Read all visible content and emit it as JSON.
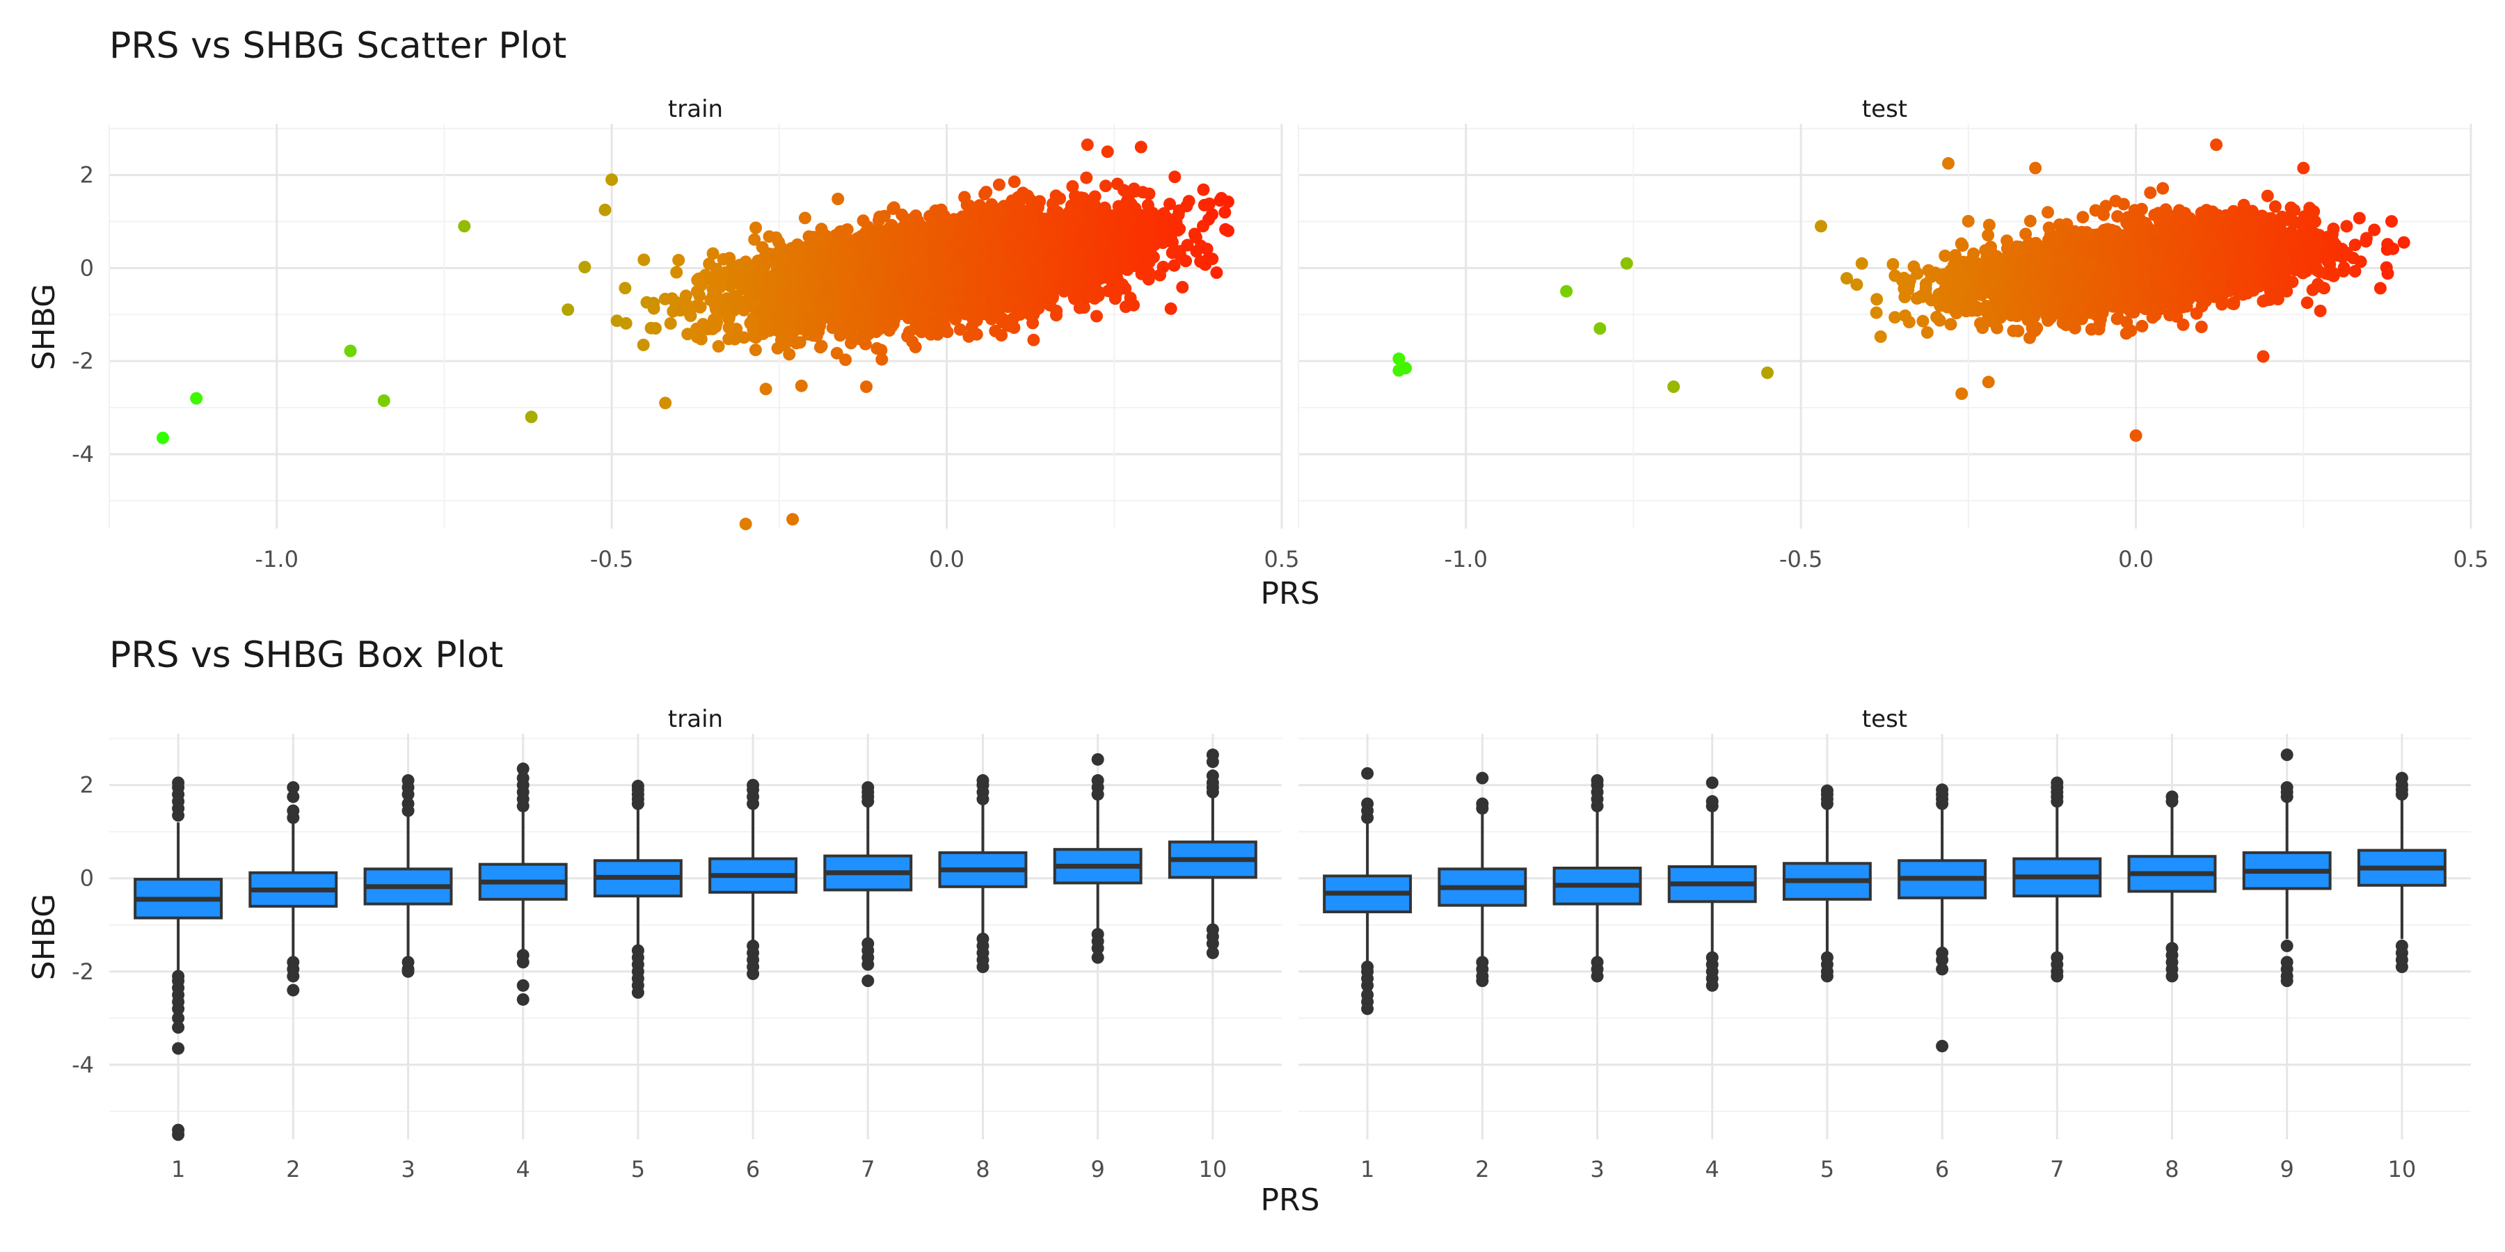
{
  "figure": {
    "scatter_title": "PRS vs SHBG Scatter Plot",
    "box_title": "PRS vs SHBG Box Plot"
  },
  "chart_data": [
    {
      "type": "scatter",
      "title": "PRS vs SHBG Scatter Plot",
      "xlabel": "PRS",
      "ylabel": "SHBG",
      "facets": [
        "train",
        "test"
      ],
      "xlim": [
        -1.25,
        0.5
      ],
      "ylim": [
        -5.6,
        3.1
      ],
      "xticks": [
        -1.0,
        -0.5,
        0.0,
        0.5
      ],
      "xtick_labels": [
        "-1.0",
        "-0.5",
        "0.0",
        "0.5"
      ],
      "yticks": [
        -4,
        -2,
        0,
        2
      ],
      "ytick_labels": [
        "-4",
        "-2",
        "0",
        "2"
      ],
      "grid": true,
      "legend": "none",
      "color_scale": {
        "low": "#33ff00",
        "mid": "#dd8800",
        "high": "#ff2200",
        "encodes": "PRS"
      },
      "series": [
        {
          "facet": "train",
          "bulk_density": {
            "n": 5500,
            "x_mean": 0.0,
            "x_sd": 0.14,
            "slope": 2.0,
            "noise_sd": 0.5,
            "x_min": -0.83,
            "x_max": 0.42
          },
          "points": [
            {
              "x": -1.17,
              "y": -3.65
            },
            {
              "x": -1.12,
              "y": -2.8
            },
            {
              "x": -0.89,
              "y": -1.78
            },
            {
              "x": -0.84,
              "y": -2.85
            },
            {
              "x": -0.62,
              "y": -3.2
            },
            {
              "x": -0.3,
              "y": -5.5
            },
            {
              "x": -0.23,
              "y": -5.4
            },
            {
              "x": -0.42,
              "y": -2.9
            },
            {
              "x": -0.5,
              "y": 1.9
            },
            {
              "x": -0.51,
              "y": 1.25
            },
            {
              "x": -0.72,
              "y": 0.9
            },
            {
              "x": 0.29,
              "y": 2.6
            },
            {
              "x": 0.21,
              "y": 2.65
            },
            {
              "x": 0.41,
              "y": 1.5
            },
            {
              "x": 0.42,
              "y": 0.8
            },
            {
              "x": 0.24,
              "y": 2.5
            },
            {
              "x": -0.27,
              "y": -2.6
            },
            {
              "x": -0.12,
              "y": -2.55
            }
          ]
        },
        {
          "facet": "test",
          "bulk_density": {
            "n": 3200,
            "x_mean": 0.0,
            "x_sd": 0.13,
            "slope": 1.5,
            "noise_sd": 0.45,
            "x_min": -0.68,
            "x_max": 0.4
          },
          "points": [
            {
              "x": -1.1,
              "y": -1.95
            },
            {
              "x": -1.1,
              "y": -2.2
            },
            {
              "x": -1.09,
              "y": -2.15
            },
            {
              "x": -0.85,
              "y": -0.5
            },
            {
              "x": -0.8,
              "y": -1.3
            },
            {
              "x": -0.76,
              "y": 0.1
            },
            {
              "x": -0.69,
              "y": -2.55
            },
            {
              "x": -0.47,
              "y": 0.9
            },
            {
              "x": -0.55,
              "y": -2.25
            },
            {
              "x": -0.28,
              "y": 2.25
            },
            {
              "x": -0.15,
              "y": 2.15
            },
            {
              "x": 0.12,
              "y": 2.65
            },
            {
              "x": 0.25,
              "y": 2.15
            },
            {
              "x": 0.4,
              "y": 0.55
            },
            {
              "x": 0.0,
              "y": -3.6
            },
            {
              "x": -0.26,
              "y": -2.7
            },
            {
              "x": -0.22,
              "y": -2.45
            },
            {
              "x": 0.19,
              "y": -1.9
            }
          ]
        }
      ]
    },
    {
      "type": "box",
      "title": "PRS vs SHBG Box Plot",
      "xlabel": "PRS",
      "ylabel": "SHBG",
      "facets": [
        "train",
        "test"
      ],
      "categories": [
        "1",
        "2",
        "3",
        "4",
        "5",
        "6",
        "7",
        "8",
        "9",
        "10"
      ],
      "ylim": [
        -5.6,
        3.1
      ],
      "yticks": [
        -4,
        -2,
        0,
        2
      ],
      "ytick_labels": [
        "-4",
        "-2",
        "0",
        "2"
      ],
      "grid": true,
      "legend": "none",
      "box_color": "#1e90ff",
      "series": [
        {
          "facet": "train",
          "boxes": [
            {
              "q1": -0.85,
              "median": -0.45,
              "q3": -0.02,
              "whisker_low": -2.0,
              "whisker_high": 1.2,
              "outliers": [
                -2.1,
                -2.2,
                -2.35,
                -2.5,
                -2.65,
                -2.8,
                -3.0,
                -3.2,
                -3.65,
                -5.4,
                -5.5,
                1.35,
                1.5,
                1.65,
                1.8,
                1.95,
                2.05
              ]
            },
            {
              "q1": -0.6,
              "median": -0.25,
              "q3": 0.12,
              "whisker_low": -1.75,
              "whisker_high": 1.2,
              "outliers": [
                -1.8,
                -1.95,
                -2.1,
                -2.4,
                1.3,
                1.45,
                1.75,
                1.95
              ]
            },
            {
              "q1": -0.55,
              "median": -0.18,
              "q3": 0.2,
              "whisker_low": -1.7,
              "whisker_high": 1.35,
              "outliers": [
                -1.8,
                -1.95,
                -2.0,
                1.45,
                1.6,
                1.8,
                1.95,
                2.1
              ]
            },
            {
              "q1": -0.45,
              "median": -0.08,
              "q3": 0.3,
              "whisker_low": -1.55,
              "whisker_high": 1.45,
              "outliers": [
                -1.65,
                -1.8,
                -2.3,
                -2.6,
                1.55,
                1.7,
                1.85,
                2.0,
                2.15,
                2.35
              ]
            },
            {
              "q1": -0.38,
              "median": 0.02,
              "q3": 0.38,
              "whisker_low": -1.45,
              "whisker_high": 1.5,
              "outliers": [
                -1.55,
                -1.7,
                -1.85,
                -2.0,
                -2.15,
                -2.3,
                -2.45,
                1.6,
                1.7,
                1.8,
                1.9,
                1.98
              ]
            },
            {
              "q1": -0.3,
              "median": 0.06,
              "q3": 0.42,
              "whisker_low": -1.35,
              "whisker_high": 1.5,
              "outliers": [
                -1.45,
                -1.6,
                -1.75,
                -1.9,
                -2.05,
                1.6,
                1.75,
                1.9,
                2.0
              ]
            },
            {
              "q1": -0.25,
              "median": 0.12,
              "q3": 0.48,
              "whisker_low": -1.3,
              "whisker_high": 1.55,
              "outliers": [
                -1.4,
                -1.55,
                -1.7,
                -1.85,
                -2.2,
                1.65,
                1.75,
                1.85,
                1.95
              ]
            },
            {
              "q1": -0.18,
              "median": 0.18,
              "q3": 0.55,
              "whisker_low": -1.2,
              "whisker_high": 1.6,
              "outliers": [
                -1.3,
                -1.45,
                -1.6,
                -1.75,
                -1.9,
                1.7,
                1.85,
                2.0,
                2.1
              ]
            },
            {
              "q1": -0.1,
              "median": 0.26,
              "q3": 0.62,
              "whisker_low": -1.1,
              "whisker_high": 1.7,
              "outliers": [
                -1.2,
                -1.35,
                -1.5,
                -1.7,
                1.8,
                1.95,
                2.1,
                2.55
              ]
            },
            {
              "q1": 0.02,
              "median": 0.4,
              "q3": 0.78,
              "whisker_low": -1.0,
              "whisker_high": 1.75,
              "outliers": [
                -1.1,
                -1.25,
                -1.4,
                -1.6,
                1.85,
                1.95,
                2.05,
                2.2,
                2.5,
                2.65
              ]
            }
          ]
        },
        {
          "facet": "test",
          "boxes": [
            {
              "q1": -0.72,
              "median": -0.32,
              "q3": 0.05,
              "whisker_low": -1.8,
              "whisker_high": 1.2,
              "outliers": [
                -1.9,
                -2.0,
                -2.15,
                -2.3,
                -2.5,
                -2.65,
                -2.8,
                1.3,
                1.45,
                1.6,
                2.25
              ]
            },
            {
              "q1": -0.58,
              "median": -0.2,
              "q3": 0.2,
              "whisker_low": -1.7,
              "whisker_high": 1.4,
              "outliers": [
                -1.8,
                -1.95,
                -2.1,
                -2.2,
                1.5,
                1.6,
                2.15
              ]
            },
            {
              "q1": -0.55,
              "median": -0.15,
              "q3": 0.22,
              "whisker_low": -1.7,
              "whisker_high": 1.45,
              "outliers": [
                -1.8,
                -1.95,
                -2.1,
                1.55,
                1.7,
                1.85,
                2.0,
                2.1
              ]
            },
            {
              "q1": -0.5,
              "median": -0.12,
              "q3": 0.25,
              "whisker_low": -1.6,
              "whisker_high": 1.45,
              "outliers": [
                -1.7,
                -1.85,
                -2.0,
                -2.15,
                -2.3,
                1.55,
                1.65,
                2.05
              ]
            },
            {
              "q1": -0.45,
              "median": -0.05,
              "q3": 0.32,
              "whisker_low": -1.6,
              "whisker_high": 1.5,
              "outliers": [
                -1.7,
                -1.85,
                -2.0,
                -2.1,
                1.6,
                1.7,
                1.8,
                1.88
              ]
            },
            {
              "q1": -0.42,
              "median": 0.0,
              "q3": 0.38,
              "whisker_low": -1.5,
              "whisker_high": 1.5,
              "outliers": [
                -1.6,
                -1.75,
                -1.95,
                -3.6,
                1.6,
                1.7,
                1.8,
                1.9
              ]
            },
            {
              "q1": -0.38,
              "median": 0.03,
              "q3": 0.42,
              "whisker_low": -1.6,
              "whisker_high": 1.55,
              "outliers": [
                -1.7,
                -1.85,
                -2.0,
                -2.1,
                1.65,
                1.75,
                1.85,
                1.95,
                2.05
              ]
            },
            {
              "q1": -0.28,
              "median": 0.1,
              "q3": 0.47,
              "whisker_low": -1.4,
              "whisker_high": 1.55,
              "outliers": [
                -1.5,
                -1.65,
                -1.8,
                -1.95,
                -2.1,
                1.65,
                1.75
              ]
            },
            {
              "q1": -0.22,
              "median": 0.15,
              "q3": 0.55,
              "whisker_low": -1.3,
              "whisker_high": 1.65,
              "outliers": [
                -1.45,
                -1.8,
                -1.95,
                -2.1,
                -2.2,
                1.75,
                1.85,
                1.95,
                2.65
              ]
            },
            {
              "q1": -0.15,
              "median": 0.22,
              "q3": 0.6,
              "whisker_low": -1.3,
              "whisker_high": 1.7,
              "outliers": [
                -1.45,
                -1.6,
                -1.75,
                -1.9,
                1.8,
                1.9,
                2.0,
                2.15
              ]
            }
          ]
        }
      ]
    }
  ]
}
